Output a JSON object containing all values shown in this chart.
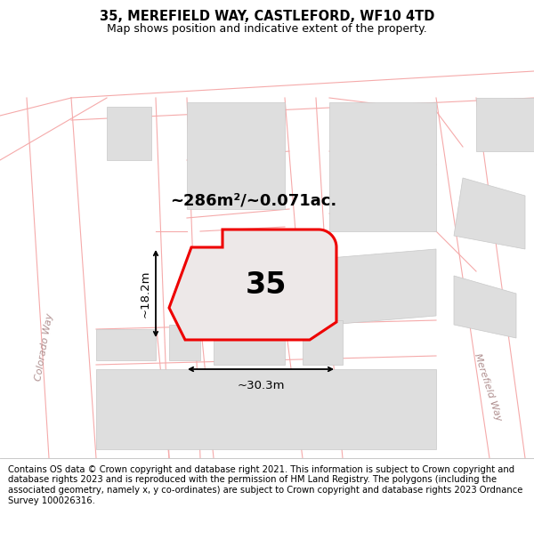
{
  "title": "35, MEREFIELD WAY, CASTLEFORD, WF10 4TD",
  "subtitle": "Map shows position and indicative extent of the property.",
  "footer": "Contains OS data © Crown copyright and database right 2021. This information is subject to Crown copyright and database rights 2023 and is reproduced with the permission of HM Land Registry. The polygons (including the associated geometry, namely x, y co-ordinates) are subject to Crown copyright and database rights 2023 Ordnance Survey 100026316.",
  "bg_color": "#ffffff",
  "road_line_color": "#f5aaaa",
  "building_fill": "#dedede",
  "building_edge": "#c8c8c8",
  "plot_fill": "#e8e0e0",
  "plot_outline_color": "#ee0000",
  "plot_number": "35",
  "area_text": "~286m²/~0.071ac.",
  "width_text": "~30.3m",
  "height_text": "~18.2m",
  "title_fontsize": 10.5,
  "subtitle_fontsize": 9,
  "footer_fontsize": 7.2,
  "measurement_fontsize": 9.5,
  "number_fontsize": 24,
  "area_fontsize": 13,
  "colorado_way_text": "Colorado Way",
  "merefield_way_text": "Merefield Way"
}
